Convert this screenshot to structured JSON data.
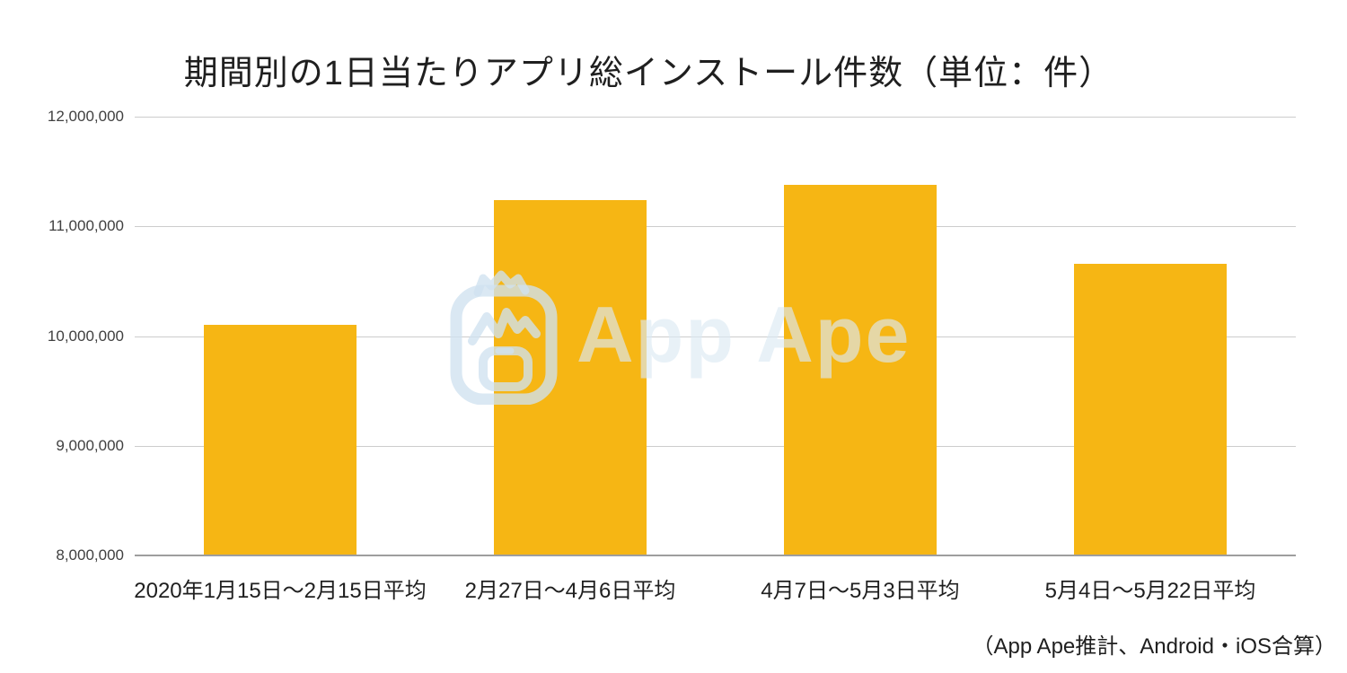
{
  "page": {
    "title": "期間別の1日当たりアプリ総インストール件数（単位：件）",
    "source_note": "（App Ape推計、Android・iOS合算）"
  },
  "watermark": {
    "text": "App Ape",
    "logo": "app-ape-gorilla-logo"
  },
  "colors": {
    "bar": "#F6B614",
    "gridline": "#CCCCCC",
    "axis_line": "#9E9E9E",
    "title_text": "#1F1F1F",
    "tick_text": "#404040",
    "background": "#FFFFFF",
    "watermark_blue": "#DCEAF4"
  },
  "chart_data": {
    "type": "bar",
    "title": "期間別の1日当たりアプリ総インストール件数（単位：件）",
    "categories": [
      "2020年1月15日〜2月15日平均",
      "2月27日〜4月6日平均",
      "4月7日〜5月3日平均",
      "5月4日〜5月22日平均"
    ],
    "values": [
      10100000,
      11240000,
      11380000,
      10660000
    ],
    "unit": "件",
    "xlabel": "",
    "ylabel": "",
    "ylim": [
      8000000,
      12000000
    ],
    "yticks": [
      12000000,
      11000000,
      10000000,
      9000000,
      8000000
    ],
    "ytick_labels": [
      "12,000,000",
      "11,000,000",
      "10,000,000",
      "9,000,000",
      "8,000,000"
    ],
    "grid": true,
    "legend": "none",
    "bar_color": "#F6B614",
    "source_note": "（App Ape推計、Android・iOS合算）"
  }
}
